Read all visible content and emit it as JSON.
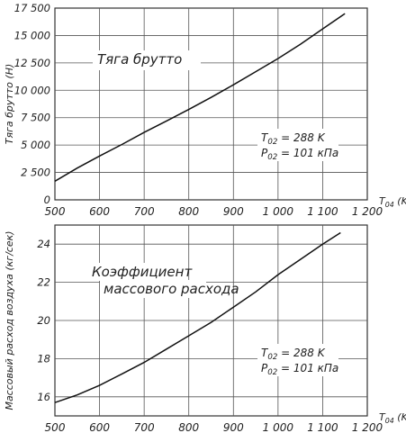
{
  "chart_data": [
    {
      "type": "line",
      "title": "Тяга брутто",
      "xlabel": "T04 (K)",
      "ylabel": "Тяга брутто (Н)",
      "xlim": [
        500,
        1200
      ],
      "ylim": [
        0,
        17500
      ],
      "x_ticks": [
        "500",
        "600",
        "700",
        "800",
        "900",
        "1 000",
        "1 100",
        "1 200"
      ],
      "y_ticks": [
        "0",
        "2 500",
        "5 000",
        "7 500",
        "10 000",
        "12 500",
        "15 000",
        "17 500"
      ],
      "annotation": [
        "T02 = 288 K",
        "P02 = 101 кПа"
      ],
      "grid": true,
      "series": [
        {
          "x": [
            500,
            550,
            600,
            650,
            700,
            750,
            800,
            850,
            900,
            950,
            1000,
            1050,
            1100,
            1150
          ],
          "y": [
            1700,
            2900,
            4000,
            5050,
            6150,
            7200,
            8250,
            9350,
            10500,
            11700,
            12900,
            14200,
            15600,
            17000
          ]
        }
      ]
    },
    {
      "type": "line",
      "title": "Коэффициент массового расхода",
      "xlabel": "T04 (K)",
      "ylabel": "Массовый расход воздуха (кг/сек)",
      "xlim": [
        500,
        1200
      ],
      "ylim": [
        15,
        25
      ],
      "x_ticks": [
        "500",
        "600",
        "700",
        "800",
        "900",
        "1 000",
        "1 100",
        "1 200"
      ],
      "y_ticks": [
        "16",
        "18",
        "20",
        "22",
        "24"
      ],
      "annotation": [
        "T02 = 288 K",
        "P02 = 101 кПа"
      ],
      "grid": true,
      "series": [
        {
          "x": [
            500,
            550,
            600,
            650,
            700,
            750,
            800,
            850,
            900,
            950,
            1000,
            1050,
            1100,
            1140
          ],
          "y": [
            15.7,
            16.1,
            16.6,
            17.2,
            17.8,
            18.5,
            19.2,
            19.9,
            20.7,
            21.5,
            22.4,
            23.2,
            24.0,
            24.6
          ]
        }
      ]
    }
  ]
}
